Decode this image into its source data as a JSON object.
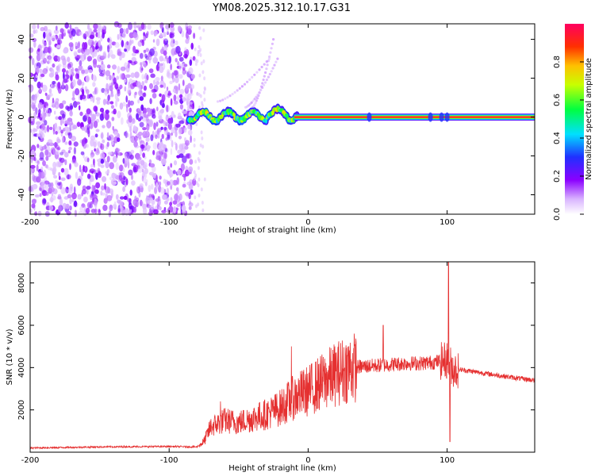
{
  "chart_data": [
    {
      "type": "heatmap",
      "title": "YM08.2025.312.10.17.G31",
      "xlabel": "Height of straight line (km)",
      "ylabel": "Frequency (Hz)",
      "xlim": [
        -200,
        163
      ],
      "ylim": [
        -50,
        48
      ],
      "xticks": [
        -200,
        -100,
        0,
        100
      ],
      "yticks": [
        -40,
        -20,
        0,
        20,
        40
      ],
      "colorbar": {
        "label": "Normalized spectral amplitude",
        "range": [
          0,
          1
        ],
        "ticks": [
          "0.0",
          "0.2",
          "0.4",
          "0.6",
          "0.8"
        ]
      },
      "features": {
        "noise_region_x": [
          -200,
          -82
        ],
        "carrier_frequency_hz": 0,
        "carrier_start_x": -10,
        "harmonic_tails": [
          {
            "x": [
              -40,
              -25
            ],
            "y": [
              5,
              40
            ]
          },
          {
            "x": [
              -65,
              -28
            ],
            "y": [
              8,
              30
            ]
          },
          {
            "x": [
              -45,
              -22
            ],
            "y": [
              5,
              30
            ]
          }
        ]
      }
    },
    {
      "type": "line",
      "xlabel": "Height of straight line (km)",
      "ylabel": "SNR (10 * v/v)",
      "xlim": [
        -200,
        163
      ],
      "ylim": [
        0,
        9000
      ],
      "xticks": [
        -200,
        -100,
        0,
        100
      ],
      "yticks": [
        2000,
        4000,
        6000,
        8000
      ],
      "series": [
        {
          "name": "SNR",
          "color": "#e53030",
          "x": [
            -200,
            -150,
            -100,
            -80,
            -75,
            -70,
            -60,
            -50,
            -40,
            -30,
            -20,
            -10,
            0,
            10,
            20,
            30,
            40,
            50,
            60,
            70,
            80,
            90,
            95,
            100,
            105,
            110,
            120,
            130,
            140,
            150,
            163
          ],
          "y": [
            200,
            250,
            270,
            250,
            500,
            1200,
            1500,
            1400,
            1600,
            1800,
            2100,
            2600,
            2900,
            3300,
            3700,
            4000,
            4050,
            4100,
            4150,
            4200,
            4200,
            4250,
            4300,
            4350,
            3900,
            3900,
            3800,
            3700,
            3600,
            3500,
            3400
          ]
        }
      ],
      "spikes": [
        {
          "x": 54,
          "y": 6000
        },
        {
          "x": 101,
          "y": 9000
        },
        {
          "x": 102,
          "y": 500
        },
        {
          "x": -12,
          "y": 5000
        },
        {
          "x": -63,
          "y": 2400
        }
      ]
    }
  ]
}
